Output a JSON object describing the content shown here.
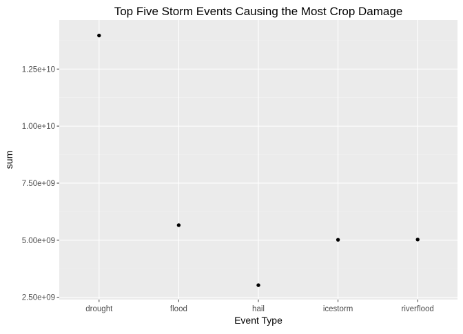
{
  "chart_data": {
    "type": "scatter",
    "title": "Top Five Storm Events Causing the Most Crop Damage",
    "xlabel": "Event Type",
    "ylabel": "sum",
    "categories": [
      "drought",
      "flood",
      "hail",
      "icestorm",
      "riverflood"
    ],
    "values": [
      13970000000,
      5660000000,
      3030000000,
      5020000000,
      5030000000
    ],
    "ylim": [
      2400000000,
      14650000000
    ],
    "yticks": [
      2500000000,
      5000000000,
      7500000000,
      10000000000,
      12500000000
    ],
    "ytick_labels": [
      "2.50e+09",
      "5.00e+09",
      "7.50e+09",
      "1.00e+10",
      "1.25e+10"
    ],
    "grid": true,
    "legend": "none",
    "colors": {
      "panel": "#ebebeb",
      "point": "#000000",
      "grid": "#ffffff"
    }
  }
}
